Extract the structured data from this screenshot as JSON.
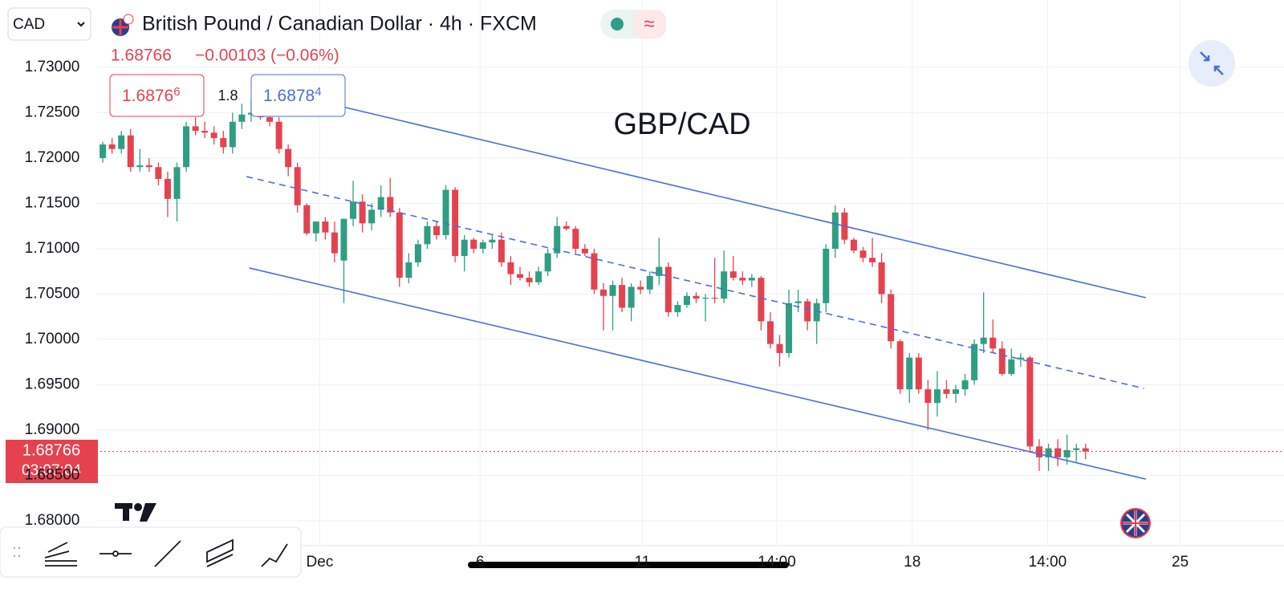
{
  "ui": {
    "currency_select": "CAD",
    "symbol_title": "British Pound / Canadian Dollar · 4h · FXCM",
    "change": "−0.00103 (−0.06%)",
    "bid_main": "1.6876",
    "bid_pip": "6",
    "spread": "1.8",
    "ask_main": "1.6878",
    "ask_pip": "4",
    "countdown": "03:07:04"
  },
  "chart_data": {
    "type": "candlestick",
    "annotation": "GBP/CAD",
    "last_price": 1.68766,
    "up_color": "#2f9e82",
    "down_color": "#e5424f",
    "channel_color": "#4a6fd8",
    "grid": true,
    "ylim": [
      1.67726,
      1.73743
    ],
    "yticks": [
      {
        "value": 1.68,
        "label": "1.68000"
      },
      {
        "value": 1.685,
        "label": "1.68500"
      },
      {
        "value": 1.69,
        "label": "1.69000"
      },
      {
        "value": 1.695,
        "label": "1.69500"
      },
      {
        "value": 1.7,
        "label": "1.70000"
      },
      {
        "value": 1.705,
        "label": "1.70500"
      },
      {
        "value": 1.71,
        "label": "1.71000"
      },
      {
        "value": 1.715,
        "label": "1.71500"
      },
      {
        "value": 1.72,
        "label": "1.72000"
      },
      {
        "value": 1.725,
        "label": "1.72500"
      },
      {
        "value": 1.73,
        "label": "1.73000"
      }
    ],
    "xlim": [
      -0.7,
      127.4
    ],
    "xticks": [
      {
        "value": 23.4,
        "label": "Dec"
      },
      {
        "value": 40.7,
        "label": "6"
      },
      {
        "value": 58.2,
        "label": "11"
      },
      {
        "value": 72.7,
        "label": "14:00"
      },
      {
        "value": 87.3,
        "label": "18"
      },
      {
        "value": 101.9,
        "label": "14:00"
      },
      {
        "value": 116.2,
        "label": "25"
      }
    ],
    "open": [
      1.72,
      1.7215,
      1.721,
      1.7225,
      1.719,
      1.7192,
      1.719,
      1.7177,
      1.7155,
      1.719,
      1.7235,
      1.723,
      1.7228,
      1.7222,
      1.7212,
      1.724,
      1.7248,
      1.725,
      1.7245,
      1.724,
      1.721,
      1.719,
      1.7148,
      1.7117,
      1.713,
      1.7118,
      1.7087,
      1.7133,
      1.7152,
      1.7128,
      1.7143,
      1.7157,
      1.714,
      1.7068,
      1.7085,
      1.7105,
      1.7125,
      1.7115,
      1.7165,
      1.7092,
      1.711,
      1.71,
      1.7107,
      1.711,
      1.7085,
      1.7072,
      1.7068,
      1.7063,
      1.7075,
      1.7095,
      1.7125,
      1.7122,
      1.71,
      1.7095,
      1.7055,
      1.7048,
      1.706,
      1.7035,
      1.7058,
      1.7055,
      1.707,
      1.708,
      1.703,
      1.7038,
      1.7048,
      1.7045,
      1.7046,
      1.7045,
      1.7075,
      1.7068,
      1.7065,
      1.7068,
      1.702,
      1.6995,
      1.6985,
      1.704,
      1.7042,
      1.702,
      1.704,
      1.71,
      1.714,
      1.711,
      1.7098,
      1.709,
      1.7085,
      1.705,
      1.6998,
      1.6945,
      1.698,
      1.6945,
      1.693,
      1.6945,
      1.694,
      1.6945,
      1.6955,
      1.6995,
      1.7002,
      1.699,
      1.6962,
      1.6978,
      1.698,
      1.6882,
      1.687,
      1.688,
      1.687,
      1.6878,
      1.688
    ],
    "high": [
      1.7218,
      1.7222,
      1.723,
      1.7232,
      1.721,
      1.72,
      1.7195,
      1.7185,
      1.7195,
      1.724,
      1.7245,
      1.724,
      1.7235,
      1.723,
      1.725,
      1.726,
      1.7265,
      1.7262,
      1.7255,
      1.7245,
      1.7215,
      1.7195,
      1.715,
      1.713,
      1.7135,
      1.713,
      1.713,
      1.7175,
      1.716,
      1.715,
      1.717,
      1.7178,
      1.7145,
      1.7095,
      1.711,
      1.713,
      1.713,
      1.717,
      1.7168,
      1.7115,
      1.7112,
      1.711,
      1.7115,
      1.7118,
      1.7092,
      1.708,
      1.7075,
      1.708,
      1.71,
      1.7135,
      1.713,
      1.7125,
      1.7105,
      1.71,
      1.7062,
      1.7065,
      1.7068,
      1.7062,
      1.7065,
      1.7075,
      1.7112,
      1.7085,
      1.7042,
      1.7052,
      1.7052,
      1.705,
      1.709,
      1.7098,
      1.7092,
      1.7075,
      1.7072,
      1.707,
      1.703,
      1.7005,
      1.7055,
      1.7055,
      1.7045,
      1.7045,
      1.7105,
      1.7148,
      1.7145,
      1.7112,
      1.7102,
      1.7112,
      1.7095,
      1.7055,
      1.7,
      1.6985,
      1.6985,
      1.6955,
      1.6965,
      1.6955,
      1.695,
      1.6962,
      1.7,
      1.7052,
      1.7022,
      1.6998,
      1.699,
      1.6985,
      1.6982,
      1.689,
      1.6885,
      1.689,
      1.6895,
      1.6885,
      1.6885
    ],
    "low": [
      1.7195,
      1.7205,
      1.7205,
      1.7185,
      1.7185,
      1.7185,
      1.717,
      1.7135,
      1.713,
      1.7185,
      1.7225,
      1.7222,
      1.7215,
      1.7205,
      1.7205,
      1.7232,
      1.724,
      1.7242,
      1.7235,
      1.7205,
      1.718,
      1.714,
      1.7115,
      1.7108,
      1.711,
      1.7085,
      1.704,
      1.7125,
      1.7118,
      1.712,
      1.7135,
      1.7135,
      1.7058,
      1.7062,
      1.708,
      1.71,
      1.711,
      1.711,
      1.7085,
      1.7075,
      1.7095,
      1.7095,
      1.71,
      1.708,
      1.706,
      1.7065,
      1.7058,
      1.706,
      1.707,
      1.709,
      1.712,
      1.7095,
      1.7092,
      1.705,
      1.701,
      1.701,
      1.703,
      1.702,
      1.705,
      1.705,
      1.706,
      1.7025,
      1.7025,
      1.7035,
      1.704,
      1.702,
      1.704,
      1.704,
      1.7065,
      1.706,
      1.7058,
      1.701,
      1.699,
      1.697,
      1.698,
      1.703,
      1.701,
      1.6995,
      1.703,
      1.709,
      1.7105,
      1.7095,
      1.7085,
      1.708,
      1.704,
      1.699,
      1.694,
      1.693,
      1.694,
      1.69,
      1.6915,
      1.6935,
      1.693,
      1.6938,
      1.695,
      1.6985,
      1.6985,
      1.696,
      1.696,
      1.697,
      1.6875,
      1.6855,
      1.6855,
      1.686,
      1.6862,
      1.6865,
      1.6868
    ],
    "close": [
      1.7215,
      1.721,
      1.7225,
      1.719,
      1.7192,
      1.719,
      1.7177,
      1.7155,
      1.719,
      1.7235,
      1.723,
      1.7228,
      1.7222,
      1.7212,
      1.724,
      1.7248,
      1.725,
      1.7245,
      1.724,
      1.721,
      1.719,
      1.7148,
      1.7117,
      1.713,
      1.7118,
      1.7095,
      1.7133,
      1.7152,
      1.7128,
      1.7143,
      1.7157,
      1.714,
      1.7068,
      1.7085,
      1.7105,
      1.7125,
      1.7115,
      1.7165,
      1.7092,
      1.711,
      1.71,
      1.7107,
      1.711,
      1.7085,
      1.7072,
      1.7068,
      1.7063,
      1.7075,
      1.7095,
      1.7125,
      1.7122,
      1.71,
      1.7095,
      1.7055,
      1.7048,
      1.706,
      1.7035,
      1.7058,
      1.7055,
      1.707,
      1.708,
      1.703,
      1.7038,
      1.7048,
      1.7045,
      1.7046,
      1.7045,
      1.7075,
      1.7068,
      1.7065,
      1.7068,
      1.702,
      1.6995,
      1.6985,
      1.704,
      1.7042,
      1.702,
      1.704,
      1.71,
      1.714,
      1.711,
      1.7098,
      1.709,
      1.7085,
      1.705,
      1.6998,
      1.6945,
      1.698,
      1.6945,
      1.693,
      1.6945,
      1.694,
      1.6945,
      1.6955,
      1.6995,
      1.7002,
      1.699,
      1.6962,
      1.6978,
      1.698,
      1.6882,
      1.687,
      1.688,
      1.687,
      1.6878,
      1.688,
      1.68766
    ],
    "channel": [
      {
        "x": [
          16.0,
          112.5
        ],
        "y": [
          1.72805,
          1.7046
        ],
        "dashed": false
      },
      {
        "x": [
          15.5,
          112.3
        ],
        "y": [
          1.71796,
          1.6946
        ],
        "dashed": true
      },
      {
        "x": [
          15.8,
          112.5
        ],
        "y": [
          1.70788,
          1.6846
        ],
        "dashed": false
      }
    ]
  }
}
